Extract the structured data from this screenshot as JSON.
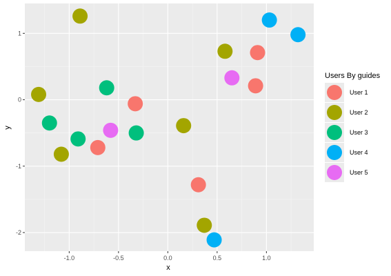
{
  "chart_data": {
    "type": "scatter",
    "xlabel": "x",
    "ylabel": "y",
    "xlim": [
      -1.45,
      1.48
    ],
    "ylim": [
      -2.28,
      1.45
    ],
    "x_ticks": [
      -1.0,
      -0.5,
      0.0,
      0.5,
      1.0
    ],
    "x_tick_labels": [
      "-1.0",
      "-0.5",
      "0.0",
      "0.5",
      "1.0"
    ],
    "y_ticks": [
      -2,
      -1,
      0,
      1
    ],
    "y_tick_labels": [
      "-2",
      "-1",
      "0",
      "1"
    ],
    "grid": true,
    "legend": {
      "title": "Users By guides",
      "placement": "right",
      "entries": [
        "User 1",
        "User 2",
        "User 3",
        "User 4",
        "User 5"
      ]
    },
    "series": [
      {
        "name": "User 1",
        "color": "#F8766D",
        "points": [
          [
            -0.33,
            -0.06
          ],
          [
            -0.71,
            -0.72
          ],
          [
            0.31,
            -1.28
          ],
          [
            0.91,
            0.71
          ],
          [
            0.89,
            0.21
          ]
        ]
      },
      {
        "name": "User 2",
        "color": "#A3A500",
        "points": [
          [
            -0.89,
            1.26
          ],
          [
            -1.31,
            0.08
          ],
          [
            -1.08,
            -0.82
          ],
          [
            0.16,
            -0.39
          ],
          [
            0.58,
            0.73
          ],
          [
            0.37,
            -1.89
          ]
        ]
      },
      {
        "name": "User 3",
        "color": "#00BF7D",
        "points": [
          [
            -0.62,
            0.18
          ],
          [
            -1.2,
            -0.35
          ],
          [
            -0.91,
            -0.59
          ],
          [
            -0.32,
            -0.5
          ]
        ]
      },
      {
        "name": "User 4",
        "color": "#00B0F6",
        "points": [
          [
            1.03,
            1.2
          ],
          [
            1.32,
            0.98
          ],
          [
            0.47,
            -2.11
          ]
        ]
      },
      {
        "name": "User 5",
        "color": "#E76BF3",
        "points": [
          [
            -0.58,
            -0.46
          ],
          [
            0.65,
            0.33
          ]
        ]
      }
    ]
  }
}
